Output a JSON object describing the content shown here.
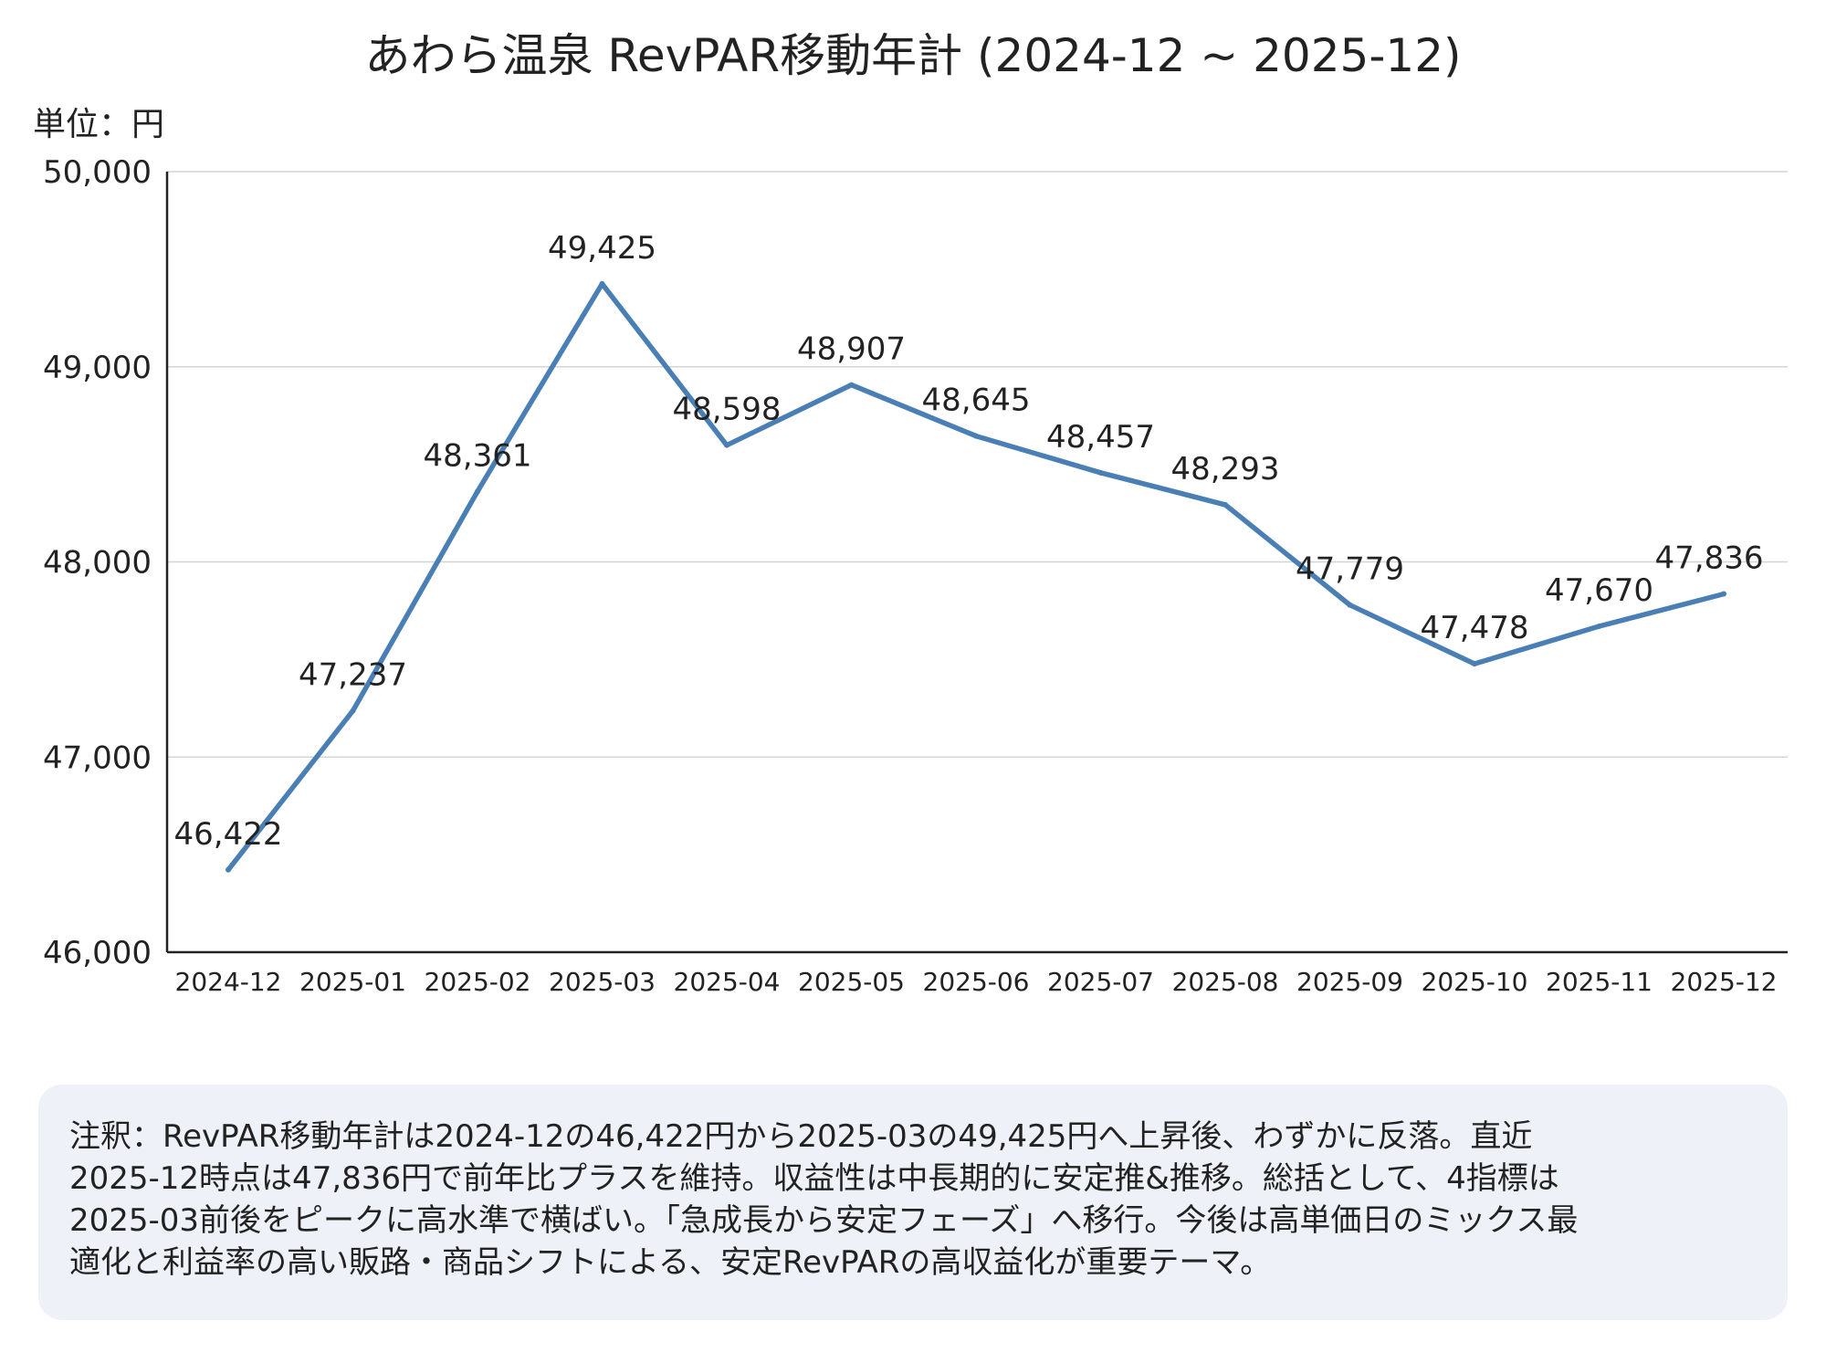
{
  "chart_data": {
    "type": "line",
    "title": "あわら温泉 RevPAR移動年計 (2024-12 ~ 2025-12)",
    "unit_label": "単位：円",
    "xlabel": "",
    "ylabel": "単位：円",
    "ylim": [
      46000,
      50000
    ],
    "yticks": [
      46000,
      47000,
      48000,
      49000,
      50000
    ],
    "ytick_labels": [
      "46,000",
      "47,000",
      "48,000",
      "49,000",
      "50,000"
    ],
    "grid": true,
    "categories": [
      "2024-12",
      "2025-01",
      "2025-02",
      "2025-03",
      "2025-04",
      "2025-05",
      "2025-06",
      "2025-07",
      "2025-08",
      "2025-09",
      "2025-10",
      "2025-11",
      "2025-12"
    ],
    "series": [
      {
        "name": "RevPAR移動年計",
        "color": "#4a7fb5",
        "values": [
          46422,
          47237,
          48361,
          49425,
          48598,
          48907,
          48645,
          48457,
          48293,
          47779,
          47478,
          47670,
          47836
        ],
        "labels": [
          "46,422",
          "47,237",
          "48,361",
          "49,425",
          "48,598",
          "48,907",
          "48,645",
          "48,457",
          "48,293",
          "47,779",
          "47,478",
          "47,670",
          "47,836"
        ]
      }
    ]
  },
  "note": {
    "text": "注釈：RevPAR移動年計は2024-12の46,422円から2025-03の49,425円へ上昇後、わずかに反落。直近\n2025-12時点は47,836円で前年比プラスを維持。収益性は中長期的に安定推&推移。総括として、4指標は\n2025-03前後をピークに高水準で横ばい。「急成長から安定フェーズ」へ移行。今後は高単価日のミックス最\n適化と利益率の高い販路・商品シフトによる、安定RevPARの高収益化が重要テーマ。"
  }
}
